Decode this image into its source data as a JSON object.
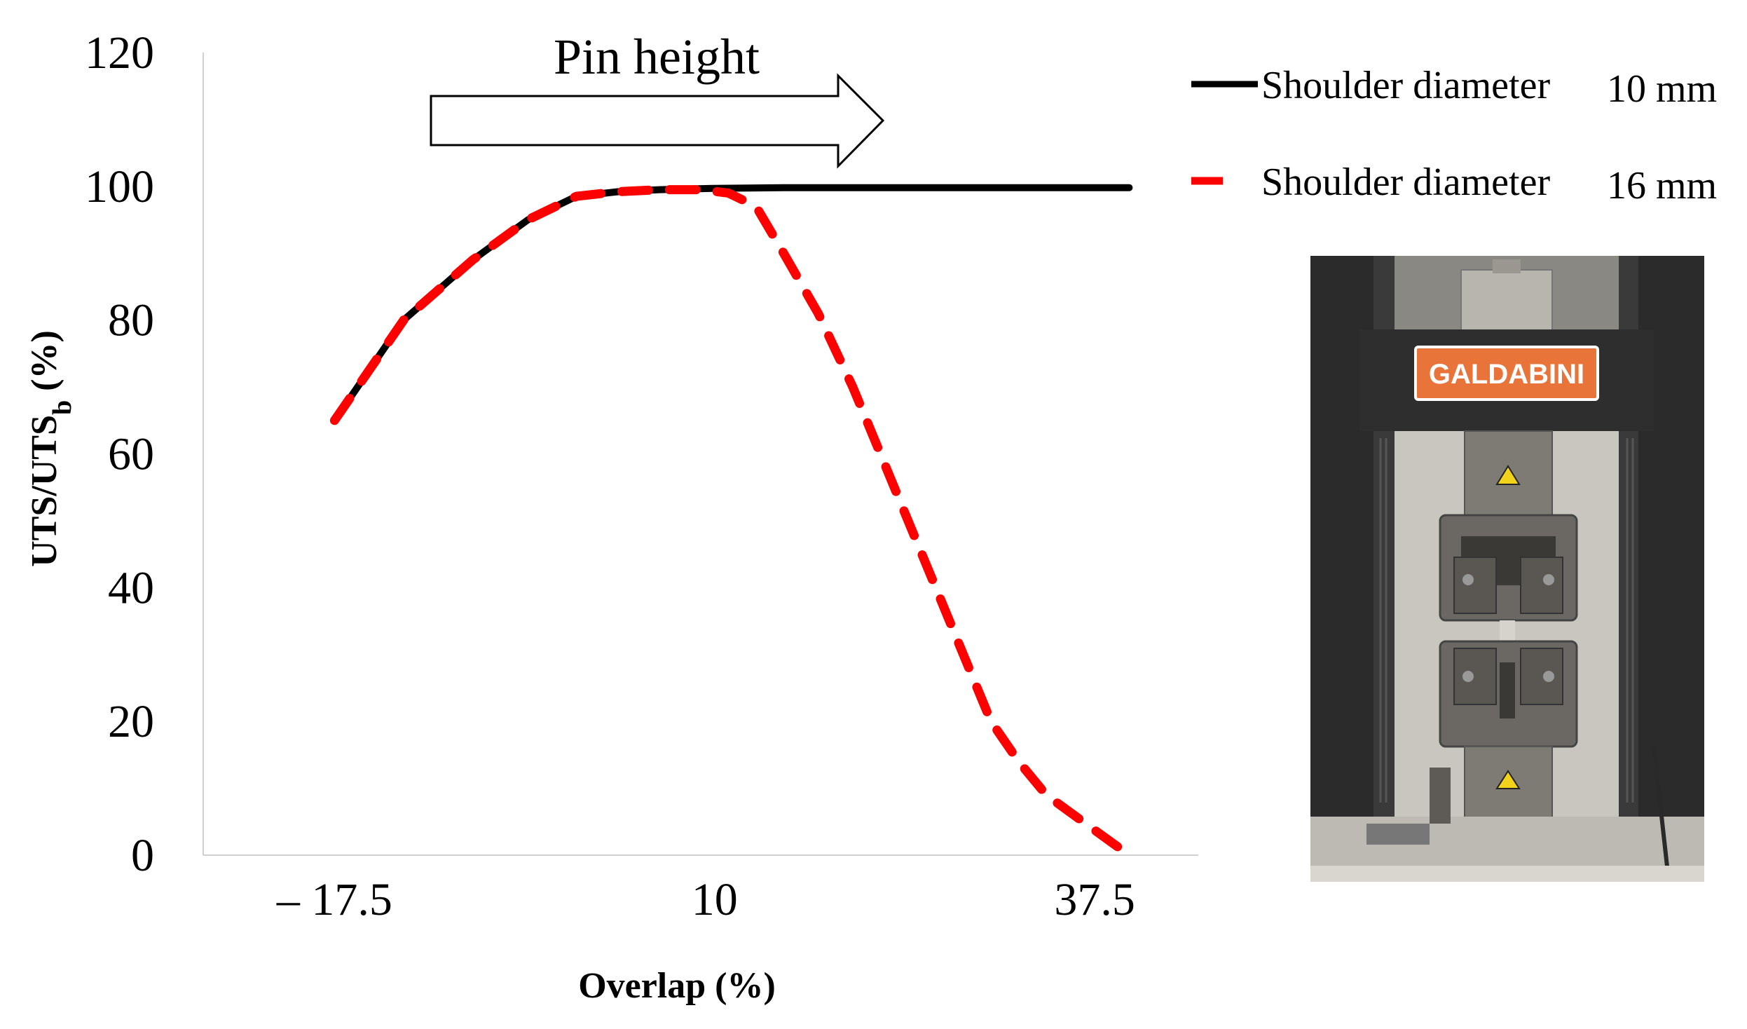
{
  "chart_data": {
    "type": "line",
    "xlabel": "Overlap (%)",
    "ylabel_main": "UTS/UTS",
    "ylabel_sub": "b",
    "ylabel_tail": " (%)",
    "x_ticks": [
      "– 17.5",
      "10",
      "37.5"
    ],
    "x_tick_values": [
      -17.5,
      10,
      37.5
    ],
    "xlim": [
      -27,
      45
    ],
    "y_ticks": [
      "0",
      "20",
      "40",
      "60",
      "80",
      "100",
      "120"
    ],
    "y_tick_values": [
      0,
      20,
      40,
      60,
      80,
      100,
      120
    ],
    "ylim": [
      0,
      120
    ],
    "grid": false,
    "legend_position": "top-right",
    "series": [
      {
        "name": "Shoulder diameter",
        "size": "10 mm",
        "color": "#000000",
        "style": "solid",
        "x": [
          -17.5,
          -12.5,
          -7.5,
          -3.5,
          0,
          3,
          6,
          10,
          15,
          18,
          24,
          30,
          38,
          40
        ],
        "y": [
          65,
          80,
          89,
          95,
          98.5,
          99.2,
          99.5,
          99.7,
          99.8,
          99.8,
          99.8,
          99.8,
          99.8,
          99.8
        ]
      },
      {
        "name": "Shoulder diameter",
        "size": "16 mm",
        "color": "#ff0000",
        "style": "dashed",
        "x": [
          -17.5,
          -12.5,
          -7.5,
          -3.5,
          0,
          3,
          6,
          9,
          11,
          13,
          15,
          17.5,
          20,
          22,
          24,
          26,
          28,
          30,
          32,
          34,
          36,
          38,
          40
        ],
        "y": [
          65,
          80,
          89,
          95,
          98.5,
          99.2,
          99.5,
          99.5,
          99,
          97,
          90,
          81,
          70,
          60,
          50,
          40,
          30,
          20,
          14,
          9,
          6,
          3,
          0
        ]
      }
    ],
    "annotation": {
      "text": "Pin height",
      "type": "arrow-right"
    }
  },
  "photo": {
    "brand_label": "GALDABINI"
  }
}
